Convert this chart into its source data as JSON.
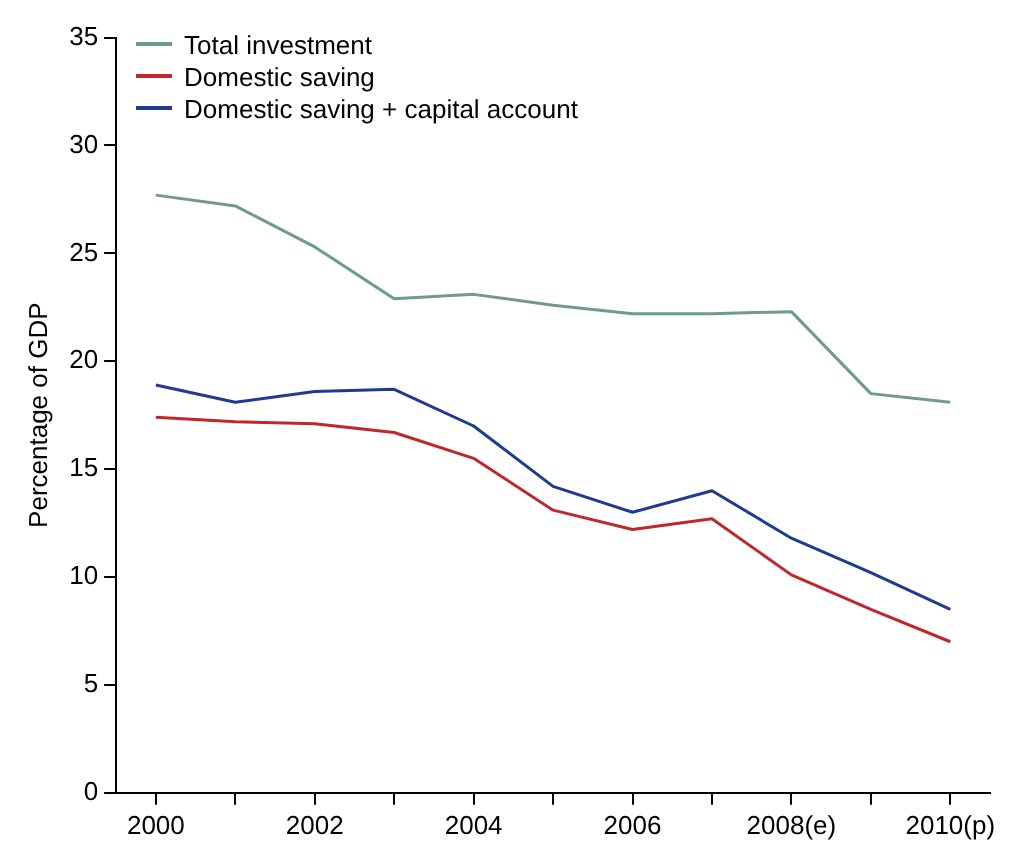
{
  "chart_data": {
    "type": "line",
    "ylabel": "Percentage of GDP",
    "categories": [
      "2000",
      null,
      "2002",
      null,
      "2004",
      null,
      "2006",
      null,
      "2008(e)",
      null,
      "2010(p)"
    ],
    "series": [
      {
        "name": "Total investment",
        "color": "#6f9a8c",
        "values": [
          27.7,
          27.2,
          25.3,
          22.9,
          23.1,
          22.6,
          22.2,
          22.2,
          22.3,
          18.5,
          18.1
        ]
      },
      {
        "name": "Domestic saving",
        "color": "#c0272d",
        "values": [
          17.4,
          17.2,
          17.1,
          16.7,
          15.5,
          13.1,
          12.2,
          12.7,
          10.1,
          8.5,
          7.0
        ]
      },
      {
        "name": "Domestic saving + capital account",
        "color": "#1f3a93",
        "values": [
          18.9,
          18.1,
          18.6,
          18.7,
          17.0,
          14.2,
          13.0,
          14.0,
          11.8,
          10.2,
          8.5
        ]
      }
    ],
    "ylim": [
      0,
      35
    ],
    "yticks": [
      0,
      5,
      10,
      15,
      20,
      25,
      30,
      35
    ],
    "legend": "top left",
    "marker": "none",
    "line_style": "solid"
  }
}
